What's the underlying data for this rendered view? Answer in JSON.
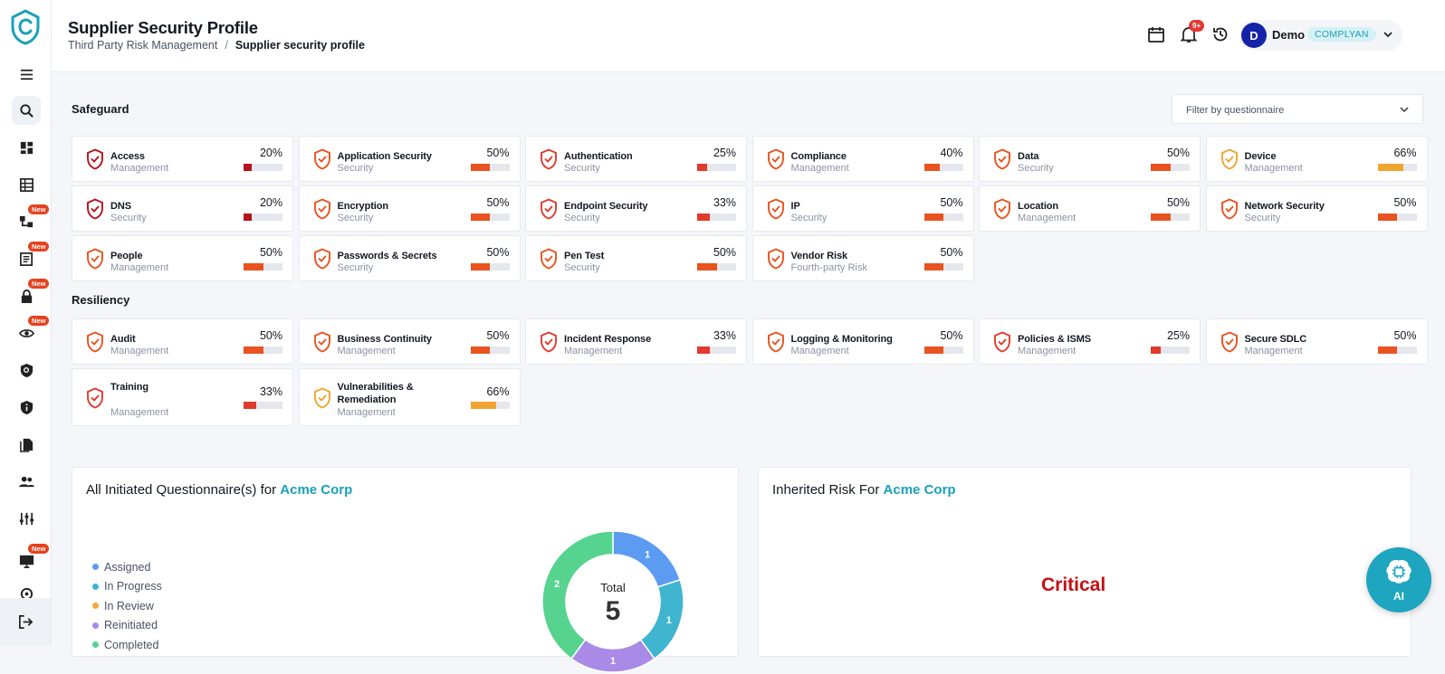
{
  "header": {
    "title": "Supplier Security Profile",
    "breadcrumb": [
      "Third Party Risk Management",
      "/",
      "Supplier security profile"
    ],
    "notifications_count": "9+",
    "user": {
      "initial": "D",
      "name": "Demo",
      "org": "COMPLYAN"
    }
  },
  "sidebar": {
    "new_label": "New",
    "items": [
      {
        "icon": "menu-icon"
      },
      {
        "icon": "search-icon"
      },
      {
        "icon": "dashboard-icon"
      },
      {
        "icon": "table-icon"
      },
      {
        "icon": "hierarchy-icon"
      },
      {
        "icon": "checklist-icon"
      },
      {
        "icon": "lock-icon"
      },
      {
        "icon": "eye-icon"
      },
      {
        "icon": "shield-search-icon"
      },
      {
        "icon": "shield-info-icon"
      },
      {
        "icon": "documents-icon"
      },
      {
        "icon": "people-icon"
      },
      {
        "icon": "sliders-icon"
      },
      {
        "icon": "monitor-icon"
      },
      {
        "icon": "logout-icon"
      }
    ]
  },
  "filter": {
    "placeholder": "Filter by questionnaire"
  },
  "safeguard": {
    "title": "Safeguard",
    "cards": [
      {
        "title": "Access",
        "sub": "Management",
        "pct": "20%",
        "value": 0.2
      },
      {
        "title": "Application Security",
        "sub": "Security",
        "pct": "50%",
        "value": 0.5
      },
      {
        "title": "Authentication",
        "sub": "Security",
        "pct": "25%",
        "value": 0.25
      },
      {
        "title": "Compliance",
        "sub": "Management",
        "pct": "40%",
        "value": 0.4
      },
      {
        "title": "Data",
        "sub": "Security",
        "pct": "50%",
        "value": 0.5
      },
      {
        "title": "Device",
        "sub": "Management",
        "pct": "66%",
        "value": 0.66
      },
      {
        "title": "DNS",
        "sub": "Security",
        "pct": "20%",
        "value": 0.2
      },
      {
        "title": "Encryption",
        "sub": "Security",
        "pct": "50%",
        "value": 0.5
      },
      {
        "title": "Endpoint Security",
        "sub": "Security",
        "pct": "33%",
        "value": 0.33
      },
      {
        "title": "IP",
        "sub": "Security",
        "pct": "50%",
        "value": 0.5
      },
      {
        "title": "Location",
        "sub": "Management",
        "pct": "50%",
        "value": 0.5
      },
      {
        "title": "Network Security",
        "sub": "Security",
        "pct": "50%",
        "value": 0.5
      },
      {
        "title": "People",
        "sub": "Management",
        "pct": "50%",
        "value": 0.5
      },
      {
        "title": "Passwords & Secrets",
        "sub": "Security",
        "pct": "50%",
        "value": 0.5
      },
      {
        "title": "Pen Test",
        "sub": "Security",
        "pct": "50%",
        "value": 0.5
      },
      {
        "title": "Vendor Risk",
        "sub": "Fourth-party Risk",
        "pct": "50%",
        "value": 0.5
      }
    ]
  },
  "resiliency": {
    "title": "Resiliency",
    "cards": [
      {
        "title": "Audit",
        "sub": "Management",
        "pct": "50%",
        "value": 0.5
      },
      {
        "title": "Business Continuity",
        "sub": "Management",
        "pct": "50%",
        "value": 0.5
      },
      {
        "title": "Incident Response",
        "sub": "Management",
        "pct": "33%",
        "value": 0.33
      },
      {
        "title": "Logging & Monitoring",
        "sub": "Management",
        "pct": "50%",
        "value": 0.5
      },
      {
        "title": "Policies & ISMS",
        "sub": "Management",
        "pct": "25%",
        "value": 0.25
      },
      {
        "title": "Secure SDLC",
        "sub": "Management",
        "pct": "50%",
        "value": 0.5
      },
      {
        "title": "Training",
        "sub": "Management",
        "pct": "33%",
        "value": 0.33
      },
      {
        "title": "Vulnerabilities & Remediation",
        "sub": "Management",
        "pct": "66%",
        "value": 0.66
      }
    ]
  },
  "questionnaires": {
    "title_prefix": "All Initiated Questionnaire(s) for",
    "company": "Acme Corp",
    "legend": [
      {
        "label": "Assigned",
        "color": "#5b9cf2"
      },
      {
        "label": "In Progress",
        "color": "#3fb5d0"
      },
      {
        "label": "In Review",
        "color": "#f2a93b"
      },
      {
        "label": "Reinitiated",
        "color": "#a98ae6"
      },
      {
        "label": "Completed",
        "color": "#56d38f"
      }
    ],
    "total_label": "Total",
    "total": "5"
  },
  "chart_data": {
    "type": "pie",
    "categories": [
      "Assigned",
      "In Progress",
      "Reinitiated",
      "Completed"
    ],
    "values": [
      1,
      1,
      1,
      2
    ],
    "title": "",
    "legend": "left"
  },
  "inherited_risk": {
    "title_prefix": "Inherited Risk For",
    "company": "Acme Corp",
    "level": "Critical"
  },
  "ai": {
    "label": "AI"
  },
  "colors": {
    "accent": "#1aa1b8",
    "bar_red": "#e03a2c",
    "bar_orange": "#e8531f",
    "bar_amber": "#f0a530",
    "bar_dark": "#b5121b"
  }
}
